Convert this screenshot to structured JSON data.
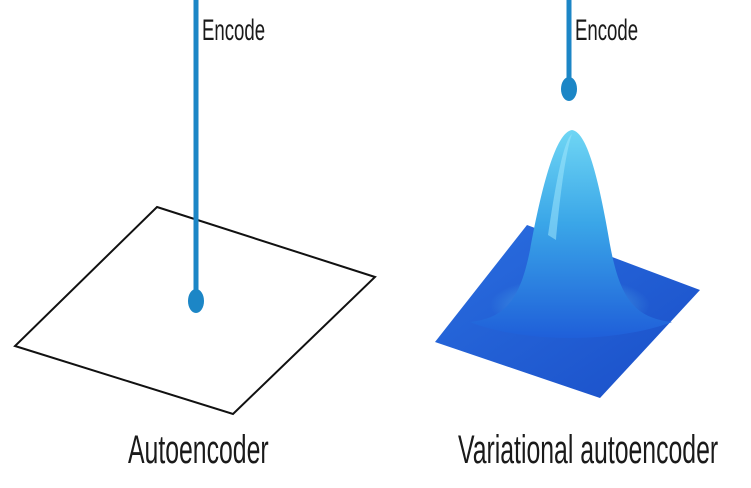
{
  "left_panel": {
    "encode_label": "Encode",
    "caption": "Autoencoder"
  },
  "right_panel": {
    "encode_label": "Encode",
    "caption": "Variational autoencoder"
  },
  "colors": {
    "arrow": "#1c86c6",
    "plane_outline": "#111111",
    "surface_base": "#1e5bd8",
    "surface_peak": "#5ec8ee"
  }
}
